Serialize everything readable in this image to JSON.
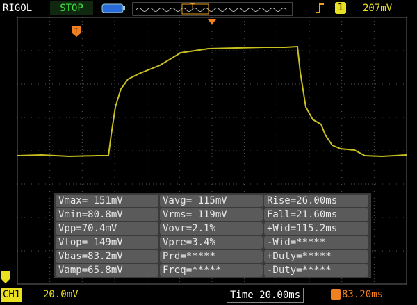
{
  "header": {
    "brand": "RIGOL",
    "status": "STOP",
    "trigger_channel": "1",
    "trigger_level": "207mV"
  },
  "measurements": [
    [
      "Vmax= 151mV",
      "Vavg= 115mV",
      "Rise=26.00ms"
    ],
    [
      "Vmin=80.8mV",
      "Vrms= 119mV",
      "Fall=21.60ms"
    ],
    [
      "Vpp=70.4mV",
      "Vovr=2.1%",
      "+Wid=115.2ms"
    ],
    [
      "Vtop= 149mV",
      "Vpre=3.4%",
      "-Wid=*****"
    ],
    [
      "Vbas=83.2mV",
      "Prd=*****",
      "+Duty=*****"
    ],
    [
      "Vamp=65.8mV",
      "Freq=*****",
      "-Duty=*****"
    ]
  ],
  "footer": {
    "channel": "CH1",
    "scale": "20.0mV",
    "timebase": "Time 20.00ms",
    "trigger_offset": "83.20ms"
  }
}
